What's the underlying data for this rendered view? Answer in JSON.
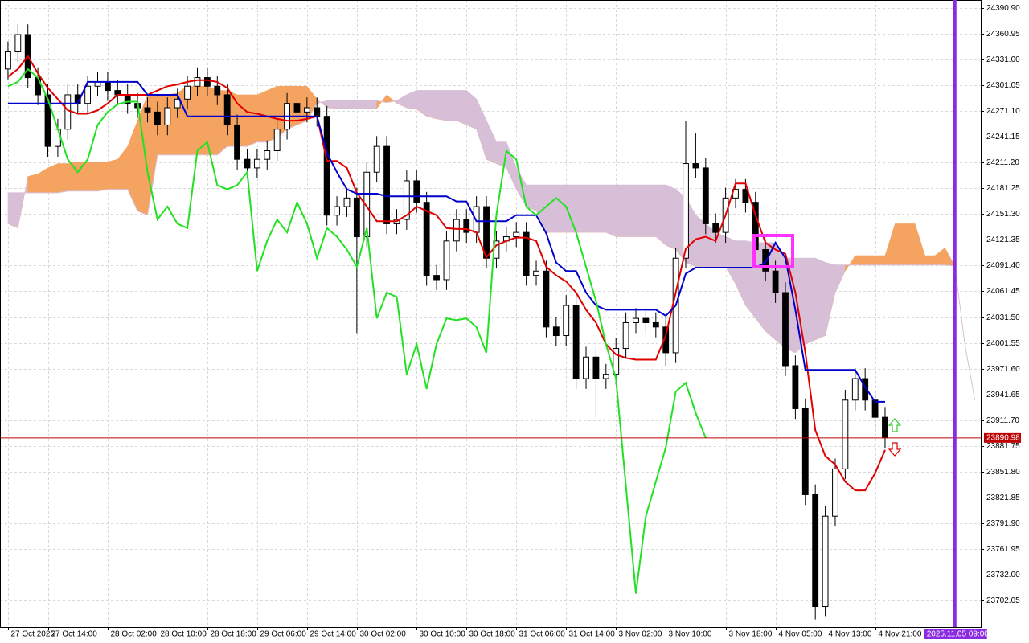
{
  "chart_data": {
    "type": "candlestick",
    "xlim": [
      -0.8,
      97.6
    ],
    "ylim": [
      23671.2,
      24400.25
    ],
    "grid": true,
    "yticks": [
      {
        "value": 24390.9,
        "label": "24390.90"
      },
      24360.95,
      {
        "value": 24331,
        "label": "24331.00"
      },
      24301.05,
      {
        "value": 24271.1,
        "label": "24271.10"
      },
      24241.15,
      {
        "value": 24211.2,
        "label": "24211.20"
      },
      24181.25,
      {
        "value": 24151.3,
        "label": "24151.30"
      },
      24121.35,
      {
        "value": 24091.4,
        "label": "24091.40"
      },
      24061.45,
      {
        "value": 24031.5,
        "label": "24031.50"
      },
      24001.55,
      {
        "value": 23971.6,
        "label": "23971.60"
      },
      23941.65,
      {
        "value": 23911.7,
        "label": "23911.70"
      },
      23881.75,
      {
        "value": 23851.8,
        "label": "23851.80"
      },
      23821.85,
      {
        "value": 23791.9,
        "label": "23791.90"
      },
      23761.95,
      {
        "value": 23732,
        "label": "23732.00"
      },
      23702.05
    ],
    "xticks": [
      {
        "value": 0,
        "label": "27 Oct 2025"
      },
      {
        "value": 4,
        "label": "27 Oct 14:00"
      },
      {
        "value": 10,
        "label": "28 Oct 02:00"
      },
      {
        "value": 15,
        "label": "28 Oct 10:00"
      },
      {
        "value": 20,
        "label": "28 Oct 18:00"
      },
      {
        "value": 25,
        "label": "29 Oct 06:00"
      },
      {
        "value": 30,
        "label": "29 Oct 14:00"
      },
      {
        "value": 35,
        "label": "30 Oct 02:00"
      },
      {
        "value": 41,
        "label": "30 Oct 10:00"
      },
      {
        "value": 46,
        "label": "30 Oct 18:00"
      },
      {
        "value": 51,
        "label": "31 Oct 06:00"
      },
      {
        "value": 56,
        "label": "31 Oct 14:00"
      },
      {
        "value": 61,
        "label": "3 Nov 02:00"
      },
      {
        "value": 66,
        "label": "3 Nov 10:00"
      },
      {
        "value": 72,
        "label": "3 Nov 18:00"
      },
      {
        "value": 77,
        "label": "4 Nov 05:00"
      },
      {
        "value": 82,
        "label": "4 Nov 13:00"
      },
      {
        "value": 87,
        "label": "4 Nov 21:00"
      }
    ],
    "bull_color": "#ffffff",
    "bear_color": "#000000",
    "open": [
      24320,
      24340,
      24360,
      24310,
      24290,
      24230,
      24250,
      24290,
      24280,
      24300,
      24305,
      24295,
      24290,
      24280,
      24275,
      24270,
      24255,
      24275,
      24285,
      24300,
      24310,
      24300,
      24290,
      24255,
      24215,
      24205,
      24215,
      24225,
      24250,
      24280,
      24270,
      24275,
      24265,
      24150,
      24160,
      24170,
      24125,
      24200,
      24230,
      24140,
      24145,
      24190,
      24165,
      24080,
      24075,
      24120,
      24145,
      24130,
      24160,
      24100,
      24120,
      24125,
      24130,
      24080,
      24085,
      24020,
      24010,
      24045,
      23960,
      23985,
      23960,
      23965,
      23995,
      24025,
      24030,
      24025,
      24020,
      23990,
      24100,
      24210,
      24205,
      24140,
      24130,
      24170,
      24180,
      24165,
      24110,
      24085,
      24060,
      23975,
      23925,
      23825,
      23695,
      23800,
      23855,
      23935,
      23960,
      23935,
      23915,
      null,
      null,
      null,
      null,
      null,
      null,
      null,
      null,
      null
    ],
    "high": [
      24352,
      24372,
      24372,
      24322,
      24302,
      24262,
      24302,
      24302,
      24312,
      24317,
      24317,
      24307,
      24302,
      24292,
      24287,
      24282,
      24287,
      24297,
      24312,
      24322,
      24322,
      24312,
      24302,
      24267,
      24227,
      24227,
      24237,
      24262,
      24292,
      24292,
      24287,
      24287,
      24277,
      24172,
      24182,
      24182,
      24212,
      24242,
      24242,
      24157,
      24202,
      24202,
      24177,
      24092,
      24132,
      24157,
      24157,
      24172,
      24172,
      24132,
      24137,
      24142,
      24142,
      24097,
      24097,
      24032,
      24057,
      24057,
      23997,
      23997,
      23977,
      24007,
      24037,
      24042,
      24042,
      24037,
      24032,
      24112,
      24260,
      24245,
      24217,
      24152,
      24182,
      24192,
      24192,
      24177,
      24122,
      24097,
      24072,
      23987,
      23937,
      23837,
      23812,
      23867,
      23947,
      23972,
      23972,
      23947,
      23927,
      null,
      null,
      null,
      null,
      null,
      null,
      null,
      null,
      null
    ],
    "low": [
      24308,
      24328,
      24298,
      24278,
      24218,
      24218,
      24238,
      24268,
      24268,
      24288,
      24283,
      24278,
      24268,
      24263,
      24258,
      24243,
      24243,
      24263,
      24273,
      24288,
      24288,
      24278,
      24243,
      24203,
      24193,
      24193,
      24203,
      24213,
      24238,
      24258,
      24258,
      24253,
      24138,
      24138,
      24148,
      24013,
      24113,
      24188,
      24128,
      24128,
      24133,
      24153,
      24068,
      24063,
      24063,
      24108,
      24118,
      24118,
      24088,
      24088,
      24108,
      24113,
      24068,
      24068,
      24008,
      23998,
      23998,
      23948,
      23948,
      23915,
      23948,
      23953,
      23983,
      24013,
      24013,
      24008,
      23975,
      23978,
      24088,
      24193,
      24128,
      24118,
      24118,
      24158,
      24153,
      24098,
      24073,
      24048,
      23963,
      23913,
      23813,
      23680,
      23683,
      23788,
      23843,
      23923,
      23923,
      23903,
      23879,
      null,
      null,
      null,
      null,
      null,
      null,
      null,
      null,
      null
    ],
    "close": [
      24340,
      24360,
      24310,
      24290,
      24230,
      24250,
      24290,
      24280,
      24300,
      24305,
      24295,
      24290,
      24280,
      24275,
      24270,
      24255,
      24275,
      24285,
      24300,
      24310,
      24300,
      24290,
      24255,
      24215,
      24205,
      24215,
      24225,
      24250,
      24280,
      24270,
      24275,
      24265,
      24150,
      24160,
      24170,
      24125,
      24200,
      24230,
      24140,
      24145,
      24190,
      24165,
      24080,
      24075,
      24120,
      24145,
      24130,
      24160,
      24100,
      24120,
      24125,
      24130,
      24080,
      24085,
      24020,
      24010,
      24045,
      23960,
      23985,
      23960,
      23965,
      23995,
      24025,
      24030,
      24025,
      24020,
      23990,
      24100,
      24210,
      24205,
      24140,
      24130,
      24170,
      24180,
      24165,
      24110,
      24085,
      24060,
      23975,
      23925,
      23825,
      23695,
      23800,
      23855,
      23935,
      23960,
      23935,
      23915,
      23891,
      null,
      null,
      null,
      null,
      null,
      null,
      null,
      null,
      null
    ],
    "lines": [
      {
        "color": "#e00000",
        "values": [
          24311,
          24320,
          24335,
          24315,
          24298,
          24285,
          24272,
          24268,
          24268,
          24272,
          24280,
          24290,
          24290,
          24290,
          24290,
          24295,
          24300,
          24302,
          24305,
          24307,
          24307,
          24305,
          24298,
          24280,
          24270,
          24268,
          24265,
          24262,
          24260,
          24260,
          24262,
          24265,
          24213,
          24213,
          24205,
          24176,
          24160,
          24143,
          24143,
          24143,
          24150,
          24160,
          24155,
          24150,
          24135,
          24134,
          24134,
          24130,
          24101,
          24115,
          24120,
          24124,
          24124,
          24120,
          24090,
          24080,
          24073,
          24060,
          24040,
          24025,
          24000,
          23988,
          23984,
          23982,
          23982,
          23982,
          24010,
          24060,
          24111,
          24122,
          24125,
          24120,
          24150,
          24187,
          24187,
          24150,
          24118,
          24110,
          24105,
          24060,
          23990,
          23900,
          23870,
          23860,
          23840,
          23830,
          23830,
          23850,
          23877,
          null,
          null,
          null,
          null,
          null,
          null,
          null,
          null,
          null
        ]
      },
      {
        "color": "#0000cc",
        "values": [
          24280,
          24280,
          24280,
          24280,
          24280,
          24280,
          24280,
          24280,
          24305,
          24305,
          24305,
          24305,
          24305,
          24305,
          24290,
          24290,
          24290,
          24290,
          24265,
          24265,
          24265,
          24265,
          24265,
          24265,
          24265,
          24265,
          24265,
          24265,
          24265,
          24265,
          24265,
          24265,
          24222,
          24200,
          24180,
          24175,
          24175,
          24175,
          24172,
          24172,
          24172,
          24172,
          24172,
          24172,
          24172,
          24166,
          24166,
          24143,
          24143,
          24143,
          24143,
          24150,
          24150,
          24150,
          24129,
          24095,
          24085,
          24085,
          24060,
          24045,
          24040,
          24040,
          24040,
          24040,
          24040,
          24040,
          24033,
          24045,
          24082,
          24089,
          24089,
          24089,
          24089,
          24089,
          24089,
          24089,
          24095,
          24118,
          24100,
          24040,
          23970,
          23970,
          23970,
          23970,
          23970,
          23970,
          23950,
          23933,
          23933,
          null,
          null,
          null,
          null,
          null,
          null,
          null,
          null,
          null
        ]
      },
      {
        "color": "#22e022",
        "values": [
          24300,
          24305,
          24320,
          24310,
          24285,
          24250,
          24215,
          24200,
          24215,
          24255,
          24270,
          24279,
          24282,
          24282,
          24200,
          24145,
          24160,
          24140,
          24135,
          24225,
          24235,
          24185,
          24180,
          24185,
          24200,
          24085,
          24120,
          24145,
          24130,
          24165,
          24140,
          24100,
          24135,
          24125,
          24110,
          24090,
          24135,
          24030,
          24060,
          24055,
          23965,
          24000,
          23948,
          24000,
          24030,
          24028,
          24030,
          24020,
          23990,
          24150,
          24225,
          24215,
          24160,
          24150,
          24160,
          24170,
          24160,
          24130,
          24090,
          24050,
          24000,
          23960,
          23835,
          23710,
          23800,
          23840,
          23880,
          23945,
          23955,
          23920,
          23891,
          null,
          null,
          null,
          null,
          null,
          null,
          null,
          null,
          null,
          null,
          null,
          null,
          null,
          null,
          null,
          null,
          null,
          null,
          null,
          null,
          null,
          null,
          null,
          null,
          null,
          null,
          null
        ]
      }
    ],
    "cloud": {
      "up_color": "#f4a460",
      "down_color": "#d8bfd8",
      "span_a": [
        24140,
        24135,
        24195,
        24198,
        24205,
        24210,
        24210,
        24212,
        24212,
        24212,
        24212,
        24215,
        24230,
        24260,
        24290,
        24290,
        24290,
        24292,
        24300,
        24300,
        24300,
        24295,
        24295,
        24290,
        24290,
        24290,
        24295,
        24300,
        24300,
        24300,
        24300,
        24285,
        24275,
        24274,
        24274,
        24274,
        24274,
        24274,
        24290,
        24280,
        24275,
        24273,
        24265,
        24262,
        24260,
        24260,
        24255,
        24250,
        24215,
        24210,
        24205,
        24180,
        24160,
        24155,
        24130,
        24130,
        24130,
        24130,
        24130,
        24130,
        24130,
        24125,
        24125,
        24125,
        24125,
        24125,
        24115,
        24110,
        24095,
        24090,
        24090,
        24090,
        24090,
        24070,
        24045,
        24030,
        24015,
        24005,
        23995,
        23990,
        24000,
        24005,
        24010,
        24060,
        24085,
        24103,
        24103,
        24103,
        24103,
        24140,
        24140,
        24140,
        24103,
        24103,
        24112,
        24091,
        null,
        null
      ],
      "span_b": [
        24176,
        24176,
        24176,
        24176,
        24176,
        24176,
        24178,
        24178,
        24178,
        24178,
        24180,
        24180,
        24180,
        24155,
        24150,
        24220,
        24220,
        24220,
        24220,
        24220,
        24220,
        24220,
        24230,
        24230,
        24230,
        24235,
        24235,
        24240,
        24250,
        24255,
        24260,
        24280,
        24283,
        24283,
        24283,
        24283,
        24283,
        24283,
        24281,
        24283,
        24290,
        24295,
        24295,
        24295,
        24295,
        24295,
        24295,
        24285,
        24260,
        24235,
        24235,
        24205,
        24185,
        24185,
        24185,
        24185,
        24185,
        24185,
        24185,
        24185,
        24185,
        24185,
        24185,
        24185,
        24185,
        24185,
        24185,
        24180,
        24170,
        24150,
        24140,
        24130,
        24125,
        24120,
        24120,
        24118,
        24118,
        24118,
        24100,
        24100,
        24100,
        24100,
        24095,
        24092,
        24092,
        24092,
        24092,
        24092,
        24092,
        24092,
        24092,
        24092,
        24092,
        24092,
        24092,
        24091,
        24000,
        23935
      ]
    },
    "last_price": 23890.98,
    "last_price_color": "#c00000",
    "current_time": {
      "value": 95,
      "label": "2025.11.05 09:00"
    },
    "current_time_color": "#8a2be2"
  }
}
